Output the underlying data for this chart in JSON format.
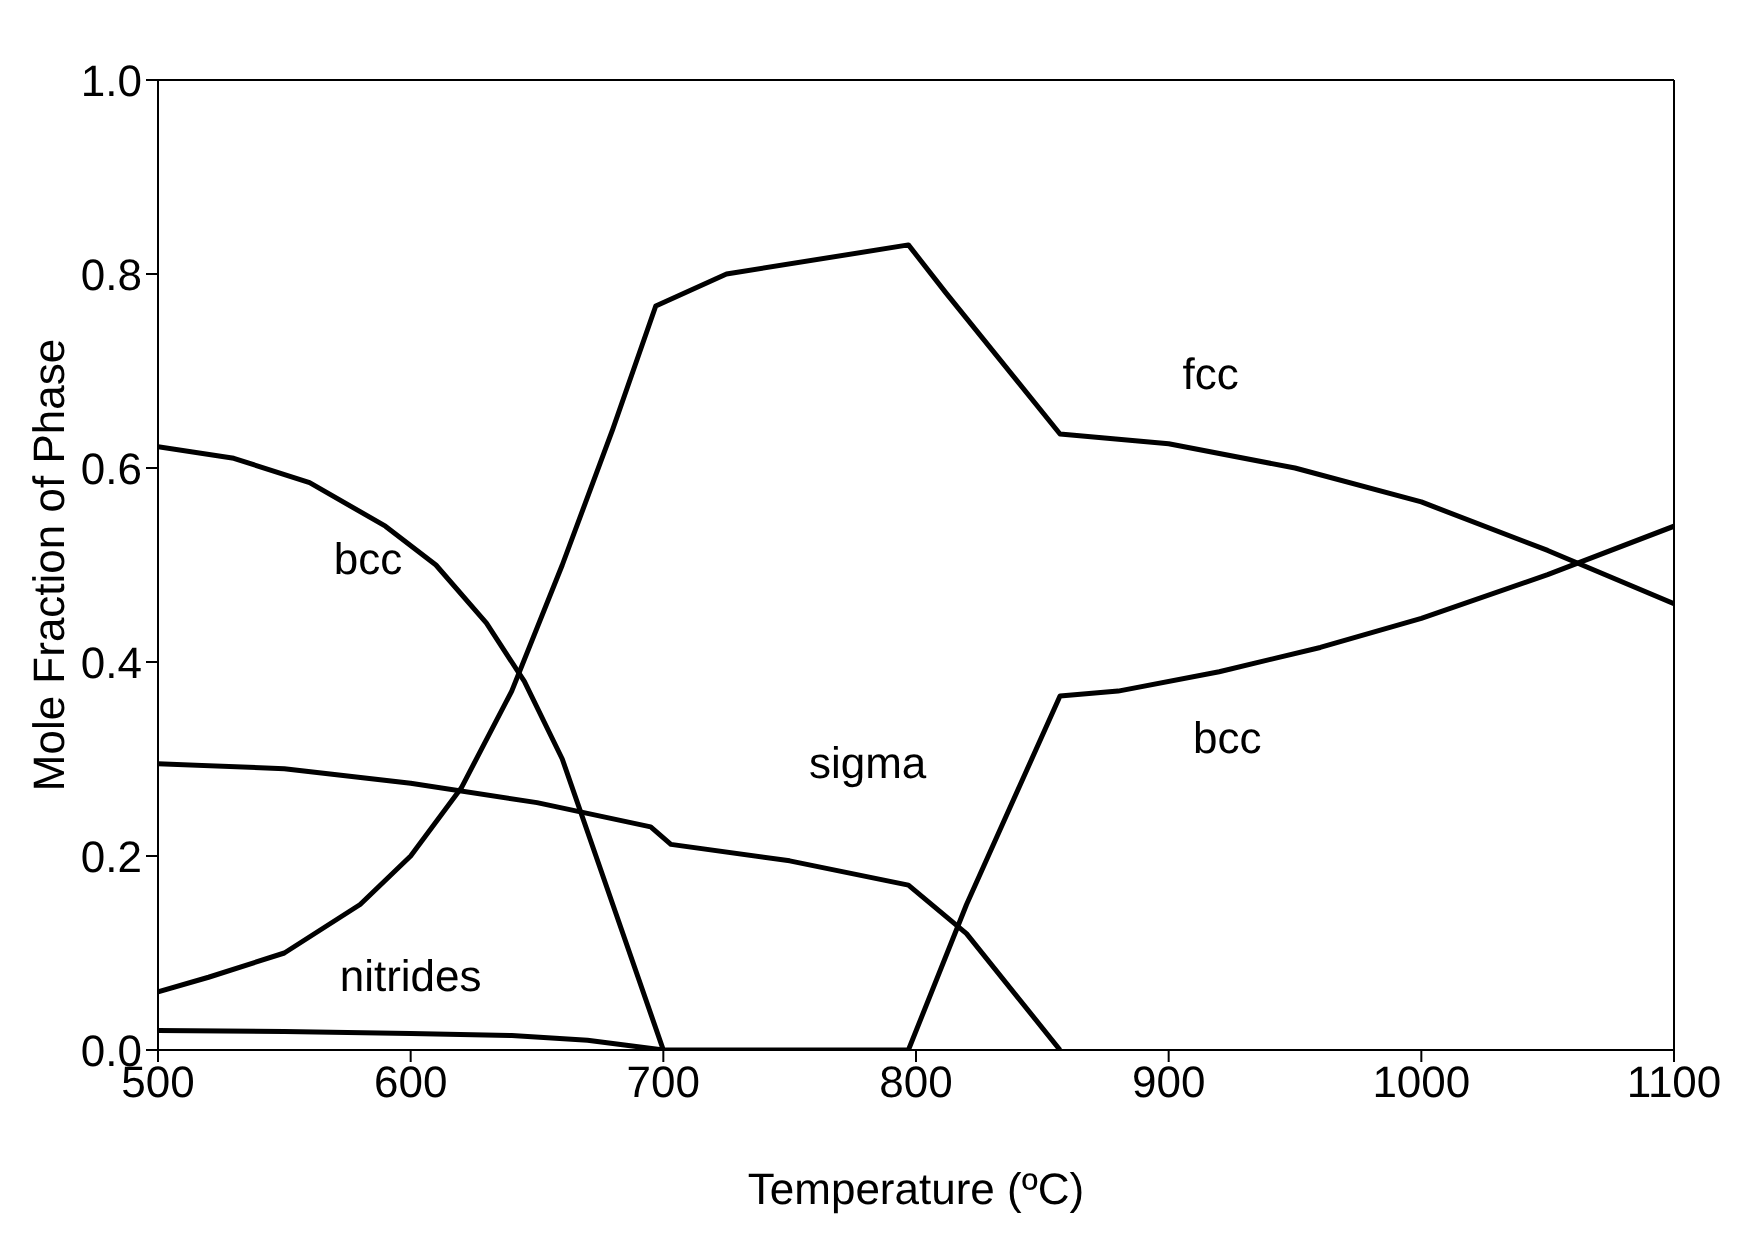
{
  "chart_data": {
    "type": "line",
    "xlabel": "Temperature (ºC)",
    "ylabel": "Mole Fraction of Phase",
    "xlim": [
      500,
      1100
    ],
    "xticks": [
      500,
      600,
      700,
      800,
      900,
      1000,
      1100
    ],
    "ylim": [
      0,
      1
    ],
    "yticks": [
      {
        "value": 0,
        "label": "0.0"
      },
      0.2,
      0.4,
      0.6,
      0.8,
      {
        "value": 1,
        "label": "1.0"
      }
    ],
    "grid": false,
    "legend": false,
    "marker": "none",
    "line_style": "solid",
    "series": [
      {
        "name": "fcc",
        "color": "#000000",
        "x": [
          500,
          520,
          550,
          580,
          600,
          620,
          640,
          660,
          680,
          697,
          725,
          797,
          812,
          857,
          900,
          950,
          1000,
          1050,
          1100
        ],
        "values": [
          0.06,
          0.075,
          0.1,
          0.15,
          0.2,
          0.27,
          0.37,
          0.5,
          0.64,
          0.767,
          0.8,
          0.83,
          0.78,
          0.635,
          0.625,
          0.6,
          0.565,
          0.515,
          0.46
        ]
      },
      {
        "name": "bcc",
        "color": "#000000",
        "x": [
          500,
          530,
          560,
          590,
          610,
          630,
          645,
          660,
          680,
          700,
          797,
          820,
          857,
          880,
          920,
          960,
          1000,
          1050,
          1100
        ],
        "values": [
          0.622,
          0.61,
          0.585,
          0.54,
          0.5,
          0.44,
          0.38,
          0.3,
          0.15,
          0,
          0,
          0.15,
          0.365,
          0.37,
          0.39,
          0.415,
          0.445,
          0.49,
          0.54
        ]
      },
      {
        "name": "sigma",
        "color": "#000000",
        "x": [
          500,
          550,
          600,
          650,
          695,
          703,
          750,
          797,
          820,
          857
        ],
        "values": [
          0.295,
          0.29,
          0.275,
          0.255,
          0.23,
          0.212,
          0.195,
          0.17,
          0.12,
          0
        ]
      },
      {
        "name": "nitrides",
        "color": "#000000",
        "x": [
          500,
          550,
          600,
          640,
          670,
          700
        ],
        "values": [
          0.02,
          0.019,
          0.017,
          0.015,
          0.01,
          0
        ]
      }
    ]
  }
}
